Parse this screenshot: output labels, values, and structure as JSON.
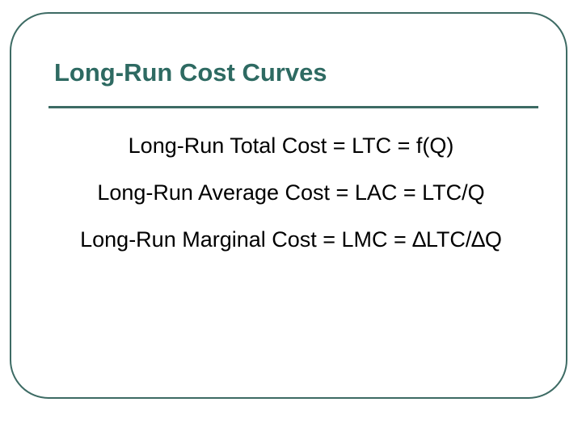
{
  "title": "Long-Run Cost Curves",
  "lines": [
    "Long-Run Total Cost = LTC = f(Q)",
    "Long-Run Average Cost = LAC = LTC/Q",
    "Long-Run Marginal Cost = LMC = ∆LTC/∆Q"
  ]
}
